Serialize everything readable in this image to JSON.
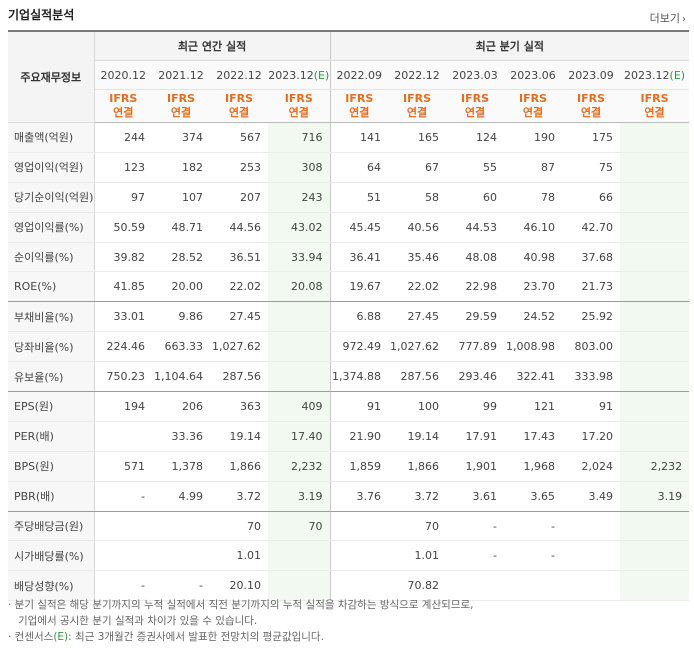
{
  "title": "기업실적분석",
  "more_label": "더보기",
  "header": {
    "row_label": "주요재무정보",
    "annual_label": "최근 연간 실적",
    "quarter_label": "최근 분기 실적",
    "annual_periods": [
      "2020.12",
      "2021.12",
      "2022.12",
      "2023.12"
    ],
    "annual_est_suffix": "(E)",
    "quarter_periods": [
      "2022.09",
      "2022.12",
      "2023.03",
      "2023.06",
      "2023.09",
      "2023.12"
    ],
    "quarter_est_suffix": "(E)",
    "ifrs": "IFRS",
    "consolidated": "연결"
  },
  "rows": [
    {
      "label": "매출액(억원)",
      "values": [
        "244",
        "374",
        "567",
        "716",
        "141",
        "165",
        "124",
        "190",
        "175",
        ""
      ]
    },
    {
      "label": "영업이익(억원)",
      "values": [
        "123",
        "182",
        "253",
        "308",
        "64",
        "67",
        "55",
        "87",
        "75",
        ""
      ]
    },
    {
      "label": "당기순이익(억원)",
      "values": [
        "97",
        "107",
        "207",
        "243",
        "51",
        "58",
        "60",
        "78",
        "66",
        ""
      ]
    },
    {
      "label": "영업이익률(%)",
      "values": [
        "50.59",
        "48.71",
        "44.56",
        "43.02",
        "45.45",
        "40.56",
        "44.53",
        "46.10",
        "42.70",
        ""
      ]
    },
    {
      "label": "순이익률(%)",
      "values": [
        "39.82",
        "28.52",
        "36.51",
        "33.94",
        "36.41",
        "35.46",
        "48.08",
        "40.98",
        "37.68",
        ""
      ]
    },
    {
      "label": "ROE(%)",
      "values": [
        "41.85",
        "20.00",
        "22.02",
        "20.08",
        "19.67",
        "22.02",
        "22.98",
        "23.70",
        "21.73",
        ""
      ]
    },
    {
      "label": "부채비율(%)",
      "values": [
        "33.01",
        "9.86",
        "27.45",
        "",
        "6.88",
        "27.45",
        "29.59",
        "24.52",
        "25.92",
        ""
      ]
    },
    {
      "label": "당좌비율(%)",
      "values": [
        "224.46",
        "663.33",
        "1,027.62",
        "",
        "972.49",
        "1,027.62",
        "777.89",
        "1,008.98",
        "803.00",
        ""
      ]
    },
    {
      "label": "유보율(%)",
      "values": [
        "750.23",
        "1,104.64",
        "287.56",
        "",
        "1,374.88",
        "287.56",
        "293.46",
        "322.41",
        "333.98",
        ""
      ]
    },
    {
      "label": "EPS(원)",
      "values": [
        "194",
        "206",
        "363",
        "409",
        "91",
        "100",
        "99",
        "121",
        "91",
        ""
      ]
    },
    {
      "label": "PER(배)",
      "values": [
        "",
        "33.36",
        "19.14",
        "17.40",
        "21.90",
        "19.14",
        "17.91",
        "17.43",
        "17.20",
        ""
      ]
    },
    {
      "label": "BPS(원)",
      "values": [
        "571",
        "1,378",
        "1,866",
        "2,232",
        "1,859",
        "1,866",
        "1,901",
        "1,968",
        "2,024",
        "2,232"
      ]
    },
    {
      "label": "PBR(배)",
      "values": [
        "-",
        "4.99",
        "3.72",
        "3.19",
        "3.76",
        "3.72",
        "3.61",
        "3.65",
        "3.49",
        "3.19"
      ]
    },
    {
      "label": "주당배당금(원)",
      "values": [
        "",
        "",
        "70",
        "70",
        "",
        "70",
        "-",
        "-",
        "",
        ""
      ]
    },
    {
      "label": "시가배당률(%)",
      "values": [
        "",
        "",
        "1.01",
        "",
        "",
        "1.01",
        "-",
        "-",
        "",
        ""
      ]
    },
    {
      "label": "배당성향(%)",
      "values": [
        "-",
        "-",
        "20.10",
        "",
        "",
        "70.82",
        "",
        "",
        "",
        ""
      ]
    }
  ],
  "notes": [
    "· 분기 실적은 해당 분기까지의 누적 실적에서 직전 분기까지의 누적 실적을 차감하는 방식으로 계산되므로,",
    "   기업에서 공시한 분기 실적과 차이가 있을 수 있습니다.",
    "· 컨센서스",
    "(E)",
    ": 최근 3개월간 증권사에서 발표한 전망치의 평균값입니다."
  ],
  "colors": {
    "accent_orange": "#e66d1f",
    "estimate_green": "#2e9a3e",
    "estimate_bg": "#f1f9f0"
  }
}
